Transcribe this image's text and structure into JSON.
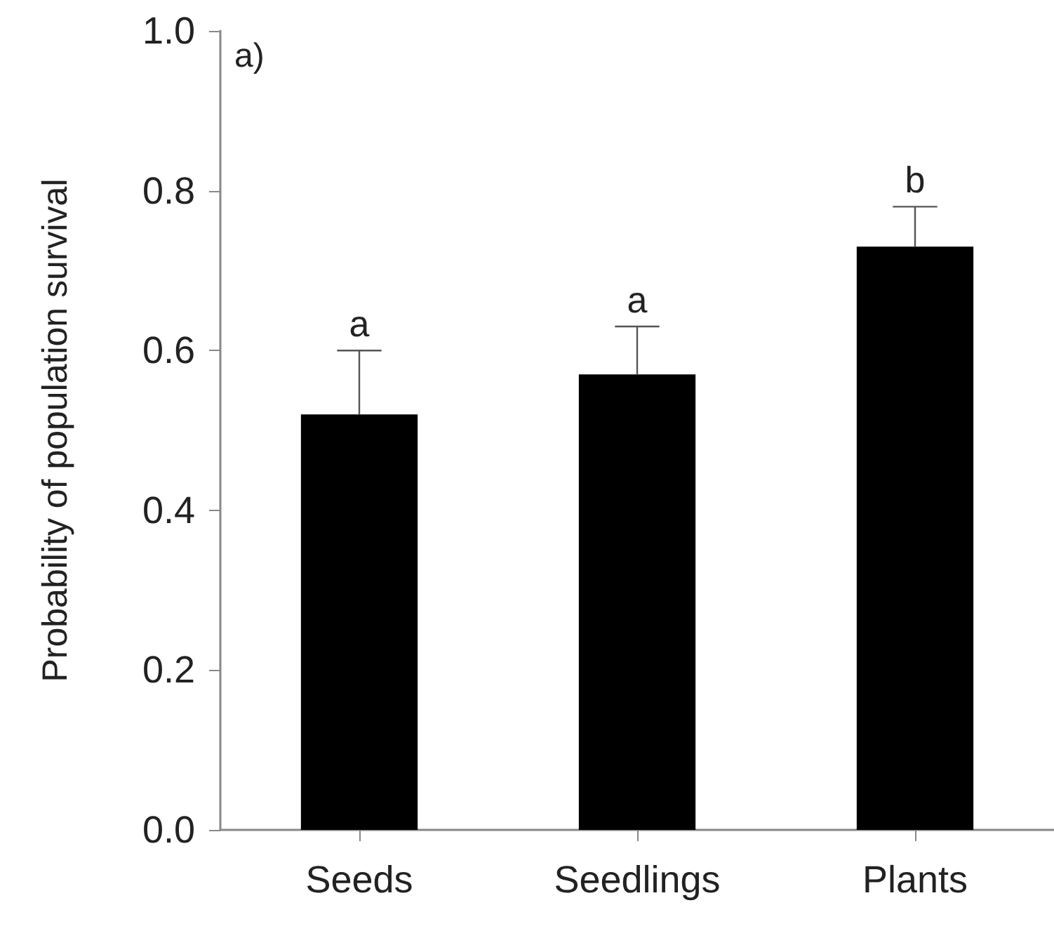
{
  "chart_data": {
    "type": "bar",
    "ylabel": "Probability of population survival",
    "categories": [
      "Seeds",
      "Seedlings",
      "Plants"
    ],
    "series": [
      {
        "color": "#000000",
        "values": [
          0.52,
          0.57,
          0.73
        ],
        "errors": [
          [
            0.52,
            0.6
          ],
          [
            0.57,
            0.63
          ],
          [
            0.73,
            0.78
          ]
        ]
      }
    ],
    "ylim": [
      0,
      1.0
    ],
    "yticks": [
      {
        "value": 0,
        "label": "0.0"
      },
      0.2,
      0.4,
      0.6,
      0.8,
      {
        "value": 1.0,
        "label": "1.0"
      }
    ],
    "grid": false,
    "annotations": [
      "a)",
      {
        "text": "a",
        "x": "Seeds",
        "y": 0.6
      },
      {
        "text": "a",
        "x": "Seedlings",
        "y": 0.63
      },
      {
        "text": "b",
        "x": "Plants",
        "y": 0.78
      }
    ]
  }
}
